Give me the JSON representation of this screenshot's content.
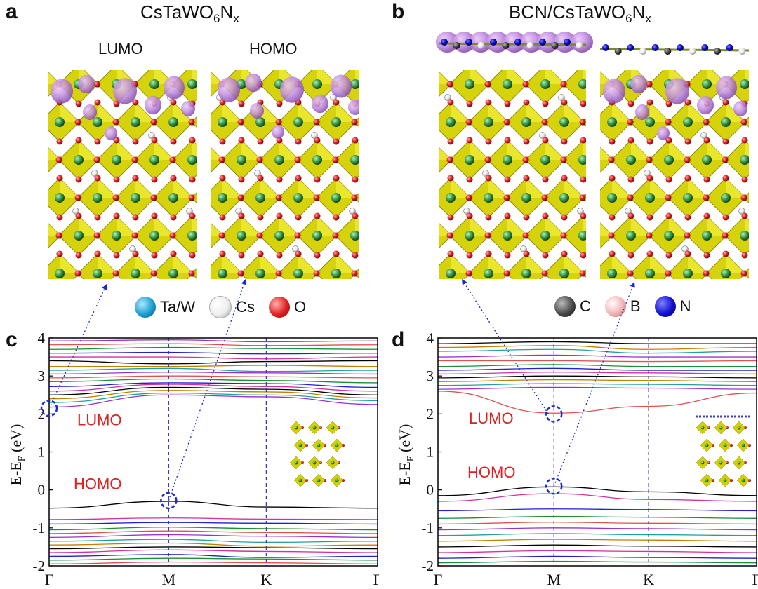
{
  "panels": {
    "a": {
      "letter": "a",
      "title_main": "CsTaWO",
      "title_sub1": "6",
      "title_mid": "N",
      "title_sub2": "x",
      "lumo": "LUMO",
      "homo": "HOMO"
    },
    "b": {
      "letter": "b",
      "title_main": "BCN/CsTaWO",
      "title_sub1": "6",
      "title_mid": "N",
      "title_sub2": "x"
    },
    "c": {
      "letter": "c"
    },
    "d": {
      "letter": "d"
    }
  },
  "legend": {
    "left": [
      {
        "label": "Ta/W",
        "color": "#1c9fd1"
      },
      {
        "label": "Cs",
        "color": "#f4f4f4"
      },
      {
        "label": "O",
        "color": "#e02020"
      }
    ],
    "right": [
      {
        "label": "C",
        "color": "#4a4a4a"
      },
      {
        "label": "B",
        "color": "#f2b4b4"
      },
      {
        "label": "N",
        "color": "#1010d0"
      }
    ]
  },
  "chart_data": [
    {
      "type": "line",
      "panel": "c",
      "ylabel": "E-E",
      "ylabel_sub": "F",
      "ylabel_unit": " (eV)",
      "ylim": [
        -2,
        4
      ],
      "yticks": [
        "-2",
        "-1",
        "0",
        "1",
        "2",
        "3",
        "4"
      ],
      "kpoints": [
        "Γ",
        "M",
        "K",
        "Γ"
      ],
      "kpos": [
        0,
        0.364,
        0.661,
        1
      ],
      "annotations": [
        {
          "text": "LUMO",
          "k": 0,
          "e": 2.15
        },
        {
          "text": "HOMO",
          "k": 0.364,
          "e": -0.28
        }
      ],
      "band_colors": [
        "#000000",
        "#d4309f",
        "#2020d0",
        "#1a8f3a",
        "#e05050",
        "#9b30d0",
        "#20a0a0",
        "#c08000"
      ],
      "bands": [
        [
          -0.48,
          -0.3,
          -0.45,
          -0.48
        ],
        [
          -0.78,
          -0.74,
          -0.77,
          -0.78
        ],
        [
          -0.9,
          -0.86,
          -0.88,
          -0.9
        ],
        [
          -1.05,
          -0.98,
          -1.02,
          -1.05
        ],
        [
          -1.15,
          -1.08,
          -1.12,
          -1.15
        ],
        [
          -1.25,
          -1.18,
          -1.22,
          -1.25
        ],
        [
          -1.35,
          -1.3,
          -1.38,
          -1.35
        ],
        [
          -1.45,
          -1.4,
          -1.48,
          -1.45
        ],
        [
          -1.55,
          -1.5,
          -1.52,
          -1.55
        ],
        [
          -1.65,
          -1.58,
          -1.62,
          -1.65
        ],
        [
          -1.75,
          -1.7,
          -1.78,
          -1.75
        ],
        [
          -1.85,
          -1.8,
          -1.82,
          -1.85
        ],
        [
          -1.95,
          -1.9,
          -1.92,
          -1.95
        ],
        [
          2.18,
          2.5,
          2.45,
          2.25
        ],
        [
          2.3,
          2.55,
          2.5,
          2.35
        ],
        [
          2.4,
          2.62,
          2.58,
          2.42
        ],
        [
          2.5,
          2.7,
          2.65,
          2.5
        ],
        [
          2.6,
          2.78,
          2.72,
          2.6
        ],
        [
          2.72,
          2.82,
          2.8,
          2.7
        ],
        [
          2.85,
          2.92,
          2.88,
          2.82
        ],
        [
          2.95,
          3.0,
          2.98,
          2.95
        ],
        [
          3.05,
          3.1,
          3.08,
          3.05
        ],
        [
          3.15,
          3.2,
          3.12,
          3.15
        ],
        [
          3.25,
          3.25,
          3.28,
          3.25
        ],
        [
          3.4,
          3.32,
          3.38,
          3.4
        ],
        [
          3.5,
          3.5,
          3.45,
          3.5
        ],
        [
          3.6,
          3.62,
          3.58,
          3.6
        ],
        [
          3.7,
          3.75,
          3.72,
          3.7
        ],
        [
          3.82,
          3.85,
          3.8,
          3.82
        ],
        [
          3.92,
          3.95,
          3.9,
          3.92
        ]
      ]
    },
    {
      "type": "line",
      "panel": "d",
      "ylabel": "E-E",
      "ylabel_sub": "F",
      "ylabel_unit": " (eV)",
      "ylim": [
        -2,
        4
      ],
      "yticks": [
        "-2",
        "-1",
        "0",
        "1",
        "2",
        "3",
        "4"
      ],
      "kpoints": [
        "Γ",
        "M",
        "K",
        "Γ"
      ],
      "kpos": [
        0,
        0.364,
        0.661,
        1
      ],
      "annotations": [
        {
          "text": "LUMO",
          "k": 0.364,
          "e": 2.0
        },
        {
          "text": "HOMO",
          "k": 0.364,
          "e": 0.1
        }
      ],
      "band_colors": [
        "#000000",
        "#d4309f",
        "#2020d0",
        "#1a8f3a",
        "#e05050",
        "#9b30d0",
        "#20a0a0",
        "#c08000"
      ],
      "bands": [
        [
          -0.15,
          0.08,
          -0.05,
          -0.15
        ],
        [
          -0.3,
          -0.1,
          -0.25,
          -0.3
        ],
        [
          -0.55,
          -0.5,
          -0.52,
          -0.55
        ],
        [
          -0.75,
          -0.7,
          -0.72,
          -0.75
        ],
        [
          -0.9,
          -0.85,
          -0.88,
          -0.9
        ],
        [
          -1.05,
          -1.0,
          -1.02,
          -1.05
        ],
        [
          -1.2,
          -1.15,
          -1.18,
          -1.2
        ],
        [
          -1.35,
          -1.3,
          -1.32,
          -1.35
        ],
        [
          -1.5,
          -1.45,
          -1.48,
          -1.5
        ],
        [
          -1.65,
          -1.6,
          -1.62,
          -1.65
        ],
        [
          -1.8,
          -1.75,
          -1.78,
          -1.8
        ],
        [
          -1.92,
          -1.88,
          -1.9,
          -1.92
        ],
        [
          2.6,
          2.02,
          2.2,
          2.55
        ],
        [
          2.65,
          2.7,
          2.68,
          2.65
        ],
        [
          2.75,
          2.8,
          2.78,
          2.75
        ],
        [
          2.85,
          2.9,
          2.88,
          2.85
        ],
        [
          2.95,
          3.0,
          2.98,
          2.95
        ],
        [
          3.05,
          3.1,
          3.08,
          3.05
        ],
        [
          3.15,
          3.2,
          3.15,
          3.15
        ],
        [
          3.25,
          3.3,
          3.25,
          3.25
        ],
        [
          3.4,
          3.4,
          3.38,
          3.4
        ],
        [
          3.5,
          3.55,
          3.5,
          3.5
        ],
        [
          3.65,
          3.7,
          3.6,
          3.65
        ],
        [
          3.75,
          3.8,
          3.7,
          3.75
        ],
        [
          3.85,
          3.9,
          3.85,
          3.85
        ]
      ]
    }
  ]
}
